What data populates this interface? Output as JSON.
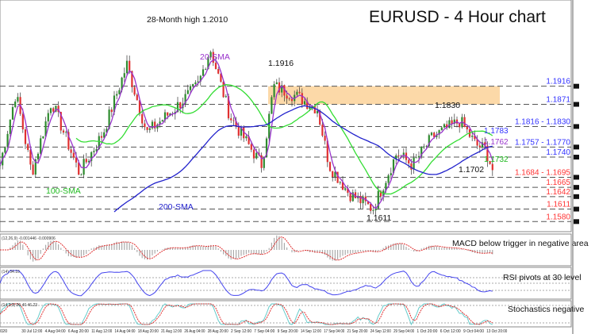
{
  "chart_data": {
    "type": "candlestick",
    "title": "EURUSD - 4 Hour chart",
    "ylim": [
      1.1555,
      1.213
    ],
    "key_prices": [
      [
        0,
        1.172
      ],
      [
        20,
        1.19
      ],
      [
        40,
        1.17
      ],
      [
        65,
        1.188
      ],
      [
        100,
        1.17
      ],
      [
        130,
        1.18
      ],
      [
        160,
        1.197
      ],
      [
        185,
        1.18
      ],
      [
        220,
        1.186
      ],
      [
        250,
        1.192
      ],
      [
        265,
        1.201
      ],
      [
        290,
        1.184
      ],
      [
        330,
        1.172
      ],
      [
        345,
        1.1916
      ],
      [
        375,
        1.189
      ],
      [
        400,
        1.186
      ],
      [
        415,
        1.172
      ],
      [
        440,
        1.165
      ],
      [
        470,
        1.1611
      ],
      [
        500,
        1.175
      ],
      [
        520,
        1.172
      ],
      [
        545,
        1.179
      ],
      [
        580,
        1.183
      ],
      [
        600,
        1.177
      ],
      [
        612,
        1.176
      ],
      [
        622,
        1.1702
      ]
    ],
    "annotations": {
      "high": "28-Month high 1.2010",
      "sma20": "20-SMA",
      "sma100": "100-SMA",
      "sma200": "200-SMA",
      "p1916": "1.1916",
      "p1830": "1.1830",
      "p1702": "1.1702",
      "p1611": "1.1611",
      "sma200_val": "1.1783",
      "sma20_val": "1.1762",
      "sma100_val": "1.1732"
    },
    "levels": [
      {
        "label": "1.1916",
        "price": 1.1916,
        "color": "#3333ff"
      },
      {
        "label": "1.1871",
        "price": 1.1871,
        "color": "#3333ff"
      },
      {
        "label": "1.1816 - 1.1830",
        "price": 1.1816,
        "color": "#3333ff"
      },
      {
        "label": "1.1757 - 1.1770",
        "price": 1.1765,
        "color": "#3333ff"
      },
      {
        "label": "1.1740",
        "price": 1.174,
        "color": "#3333ff"
      },
      {
        "label": "1.1684 - 1.1695",
        "price": 1.169,
        "color": "#ff3333"
      },
      {
        "label": "1.1665",
        "price": 1.1665,
        "color": "#ff3333"
      },
      {
        "label": "1.1642",
        "price": 1.1642,
        "color": "#ff3333"
      },
      {
        "label": "1.1611",
        "price": 1.1611,
        "color": "#ff3333"
      },
      {
        "label": "1.1580",
        "price": 1.158,
        "color": "#ff3333"
      }
    ],
    "resistance_zone": [
      1.1871,
      1.1916
    ],
    "xticks": [
      "020",
      "30 Jul 12:00",
      "4 Aug 04:00",
      "6 Aug 20:00",
      "11 Aug 12:00",
      "14 Aug 04:00",
      "18 Aug 20:00",
      "21 Aug 12:00",
      "26 Aug 04:00",
      "28 Aug 20:00",
      "2 Sep 12:00",
      "7 Sep 04:00",
      "9 Sep 20:00",
      "14 Sep 12:00",
      "17 Sep 04:00",
      "21 Sep 20:00",
      "24 Sep 12:00",
      "29 Sep 04:00",
      "1 Oct 20:00",
      "6 Oct 12:00",
      "9 Oct 04:00",
      "13 Oct 20:00"
    ],
    "panels": {
      "macd": {
        "header": "(12,26,9) -0.001446 -0.000906",
        "comment": "MACD below trigger in negative area"
      },
      "rsi": {
        "header": "(14) 34.10",
        "comment": "RSI pivots at 30 level"
      },
      "stoch": {
        "header": "(14,3,3) 26.40 46.23",
        "comment": "Stochastics negative"
      }
    },
    "colors": {
      "up": "#2e8b2e",
      "down": "#e03030",
      "sma20": "#9933cc",
      "sma100": "#33dd33",
      "sma200": "#2222cc",
      "zone": "#fcd9a8"
    }
  }
}
